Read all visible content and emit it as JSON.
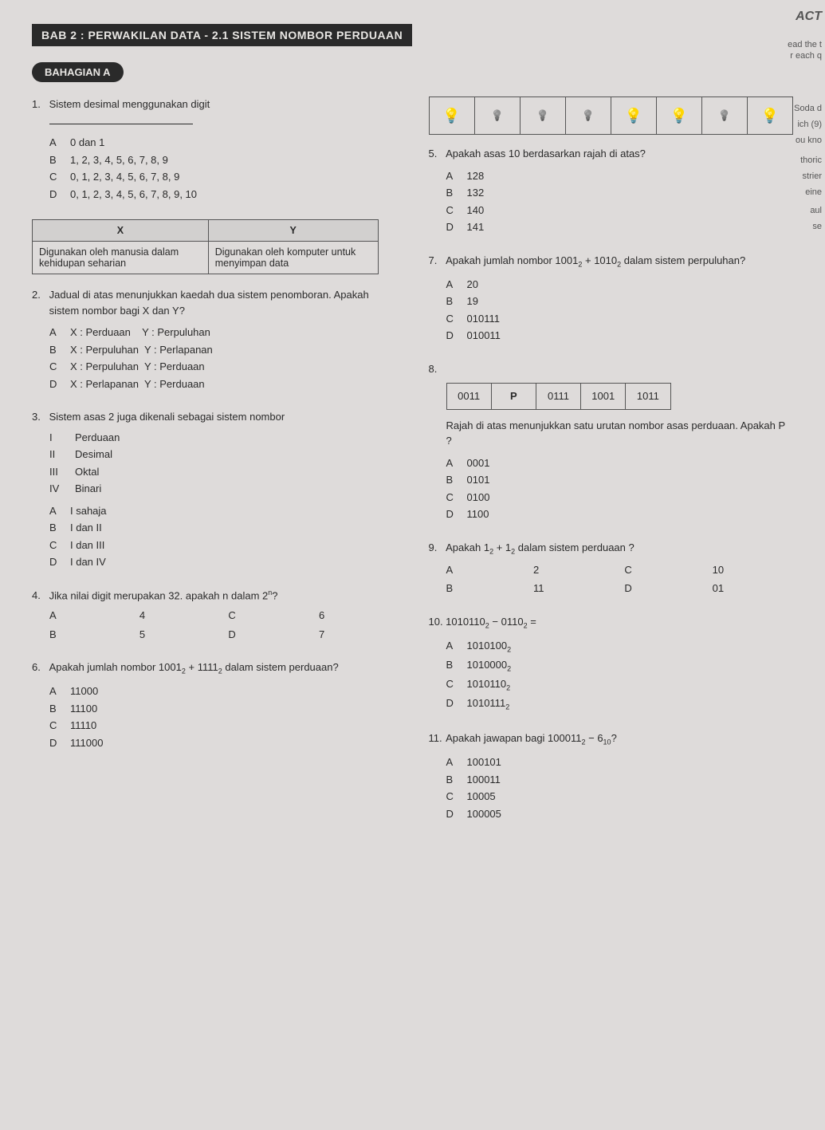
{
  "header": "BAB 2 : PERWAKILAN DATA - 2.1 SISTEM NOMBOR PERDUAAN",
  "section": "BAHAGIAN A",
  "edge": {
    "t1": "ACT",
    "t2": "ead the t",
    "t3": "r each q",
    "t4": "Soda d",
    "t5": "ich (9)",
    "t6": "ou kno",
    "t7": "thoric",
    "t8": "strier",
    "t9": "eine",
    "t10": "aul",
    "t11": "se"
  },
  "q1": {
    "num": "1.",
    "text": "Sistem desimal menggunakan digit",
    "opts": {
      "A": "0 dan 1",
      "B": "1, 2, 3, 4, 5, 6, 7, 8, 9",
      "C": "0, 1, 2, 3, 4, 5, 6, 7, 8, 9",
      "D": "0, 1, 2, 3, 4, 5, 6, 7, 8, 9, 10"
    }
  },
  "xy_table": {
    "head_x": "X",
    "head_y": "Y",
    "cell_x": "Digunakan oleh manusia dalam kehidupan seharian",
    "cell_y": "Digunakan oleh komputer untuk menyimpan data"
  },
  "q2": {
    "num": "2.",
    "text": "Jadual di atas menunjukkan kaedah dua sistem penomboran. Apakah sistem nombor bagi X dan Y?",
    "opts": {
      "A": "X : Perduaan    Y : Perpuluhan",
      "B": "X : Perpuluhan  Y : Perlapanan",
      "C": "X : Perpuluhan  Y : Perduaan",
      "D": "X : Perlapanan  Y : Perduaan"
    }
  },
  "q3": {
    "num": "3.",
    "text": "Sistem asas 2 juga dikenali sebagai sistem nombor",
    "roman": {
      "I": "Perduaan",
      "II": "Desimal",
      "III": "Oktal",
      "IV": "Binari"
    },
    "opts": {
      "A": "I sahaja",
      "B": "I dan II",
      "C": "I dan III",
      "D": "I dan IV"
    }
  },
  "q4": {
    "num": "4.",
    "text_a": "Jika nilai digit merupakan 32. apakah n dalam 2",
    "text_b": "?",
    "sup": "n",
    "opts": {
      "A": "4",
      "B": "5",
      "C": "6",
      "D": "7"
    }
  },
  "q6": {
    "num": "6.",
    "text_a": "Apakah jumlah nombor 1001",
    "text_b": " + 1111",
    "text_c": " dalam sistem perduaan?",
    "sub": "2",
    "opts": {
      "A": "11000",
      "B": "11100",
      "C": "11110",
      "D": "111000"
    }
  },
  "bulbs": [
    "on",
    "off",
    "off",
    "off",
    "on",
    "on",
    "off",
    "on"
  ],
  "q5": {
    "num": "5.",
    "text": "Apakah asas 10 berdasarkan rajah di atas?",
    "opts": {
      "A": "128",
      "B": "132",
      "C": "140",
      "D": "141"
    }
  },
  "q7": {
    "num": "7.",
    "text_a": "Apakah jumlah nombor 1001",
    "text_b": " + 1010",
    "text_c": " dalam sistem perpuluhan?",
    "sub": "2",
    "opts": {
      "A": "20",
      "B": "19",
      "C": "010111",
      "D": "010011"
    }
  },
  "q8": {
    "num": "8.",
    "cells": [
      "0011",
      "P",
      "0111",
      "1001",
      "1011"
    ],
    "text": "Rajah di atas menunjukkan satu urutan nombor asas perduaan. Apakah P ?",
    "opts": {
      "A": "0001",
      "B": "0101",
      "C": "0100",
      "D": "1100"
    }
  },
  "q9": {
    "num": "9.",
    "text_a": "Apakah 1",
    "text_b": " + 1",
    "text_c": " dalam sistem perduaan ?",
    "sub": "2",
    "opts": {
      "A": "2",
      "B": "11",
      "C": "10",
      "D": "01"
    }
  },
  "q10": {
    "num": "10.",
    "text_a": "1010110",
    "text_b": " − 0110",
    "text_c": " =",
    "sub": "2",
    "opts": {
      "A": {
        "v": "1010100",
        "s": "2"
      },
      "B": {
        "v": "1010000",
        "s": "2"
      },
      "C": {
        "v": "1010110",
        "s": "2"
      },
      "D": {
        "v": "1010111",
        "s": "2"
      }
    }
  },
  "q11": {
    "num": "11.",
    "text_a": "Apakah jawapan bagi 100011",
    "sub1": "2",
    "text_b": " − 6",
    "sub2": "10",
    "text_c": "?",
    "opts": {
      "A": "100101",
      "B": "100011",
      "C": "10005",
      "D": "100005"
    }
  }
}
